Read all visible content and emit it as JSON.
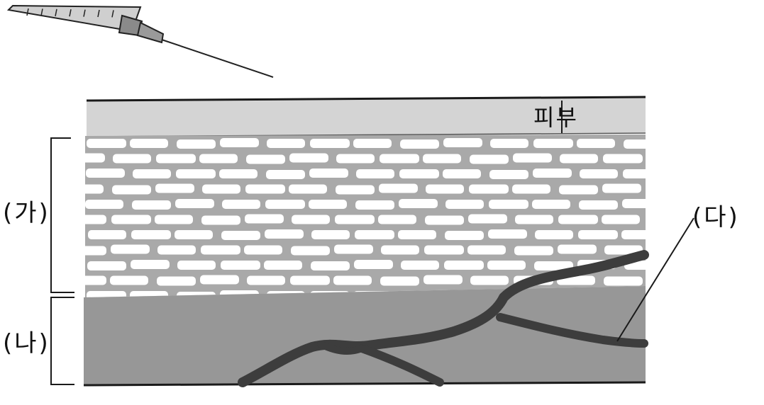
{
  "labels": {
    "skin": "피부",
    "layer_ga": "(가)",
    "layer_na": "(나)",
    "vessel_da": "(다)"
  },
  "colors": {
    "background": "#ffffff",
    "skin_layer": "#d4d4d4",
    "fat_mesh": "#a9a9a9",
    "fat_cell": "#ffffff",
    "muscle_layer": "#979797",
    "blood_vessel": "#3d3d3d",
    "outline": "#1a1a1a",
    "syringe_body": "#c9c9c9",
    "syringe_hub": "#7a7a7a"
  },
  "icons": {
    "syringe": "syringe-icon"
  }
}
